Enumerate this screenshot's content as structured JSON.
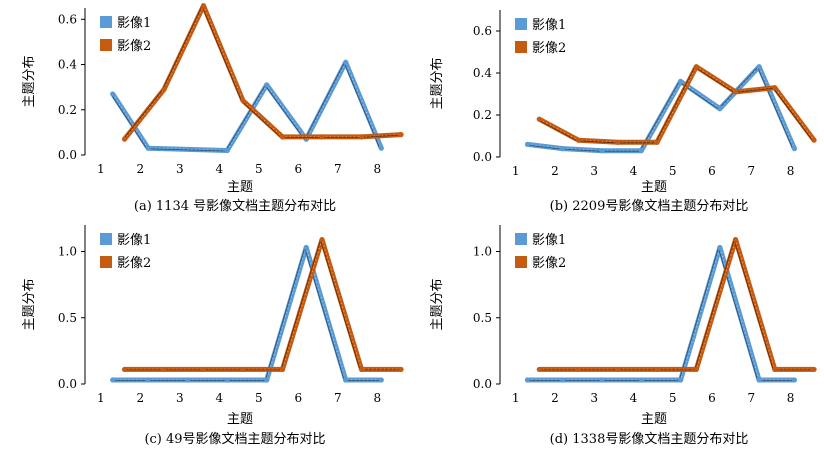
{
  "colors": {
    "影像1": "#5b9bd5",
    "影像2": "#c55a11"
  },
  "chart_data": [
    {
      "type": "line",
      "panel": "a",
      "caption": "(a) 1134 号影像文档主题分布对比",
      "xlabel": "主题",
      "ylabel": "主题分布",
      "x_ticks": [
        1,
        2,
        3,
        4,
        5,
        6,
        7,
        8
      ],
      "y_ticks": [
        "0.0",
        "0.2",
        "0.4",
        "0.6"
      ],
      "ylim": [
        0,
        0.65
      ],
      "xlim": [
        0.6,
        8.7
      ],
      "legend_placement": "top-left",
      "series": [
        {
          "name": "影像1",
          "x": [
            1.3,
            2.2,
            4.2,
            5.2,
            6.2,
            7.2,
            8.1
          ],
          "values": [
            0.27,
            0.03,
            0.02,
            0.31,
            0.07,
            0.41,
            0.03
          ]
        },
        {
          "name": "影像2",
          "x": [
            1.6,
            2.6,
            3.6,
            4.6,
            5.6,
            6.6,
            7.6,
            8.6
          ],
          "values": [
            0.07,
            0.29,
            0.66,
            0.24,
            0.08,
            0.08,
            0.08,
            0.09
          ]
        }
      ]
    },
    {
      "type": "line",
      "panel": "b",
      "caption": "(b) 2209号影像文档主题分布对比",
      "xlabel": "主题",
      "ylabel": "主题分布",
      "x_ticks": [
        1,
        2,
        3,
        4,
        5,
        6,
        7,
        8
      ],
      "y_ticks": [
        "0.0",
        "0.2",
        "0.4",
        "0.6"
      ],
      "ylim": [
        0,
        0.7
      ],
      "xlim": [
        0.6,
        8.7
      ],
      "legend_placement": "top-left",
      "series": [
        {
          "name": "影像1",
          "x": [
            1.3,
            2.2,
            3.2,
            4.2,
            5.2,
            6.2,
            7.2,
            8.1
          ],
          "values": [
            0.06,
            0.04,
            0.03,
            0.03,
            0.36,
            0.23,
            0.43,
            0.04
          ]
        },
        {
          "name": "影像2",
          "x": [
            1.6,
            2.6,
            3.6,
            4.6,
            5.6,
            6.6,
            7.6,
            8.6
          ],
          "values": [
            0.18,
            0.08,
            0.07,
            0.07,
            0.43,
            0.31,
            0.33,
            0.08
          ]
        }
      ]
    },
    {
      "type": "line",
      "panel": "c",
      "caption": "(c) 49号影像文档主题分布对比",
      "xlabel": "主题",
      "ylabel": "主题分布",
      "x_ticks": [
        1,
        2,
        3,
        4,
        5,
        6,
        7,
        8
      ],
      "y_ticks": [
        "0.0",
        "0.5",
        "1.0"
      ],
      "ylim": [
        0,
        1.2
      ],
      "xlim": [
        0.6,
        8.7
      ],
      "legend_placement": "top-left",
      "series": [
        {
          "name": "影像1",
          "x": [
            1.3,
            2.2,
            3.2,
            4.2,
            5.2,
            6.2,
            7.2,
            8.1
          ],
          "values": [
            0.03,
            0.03,
            0.03,
            0.03,
            0.03,
            1.03,
            0.03,
            0.03
          ]
        },
        {
          "name": "影像2",
          "x": [
            1.6,
            2.6,
            3.6,
            4.6,
            5.6,
            6.6,
            7.6,
            8.6
          ],
          "values": [
            0.11,
            0.11,
            0.11,
            0.11,
            0.11,
            1.09,
            0.11,
            0.11
          ]
        }
      ]
    },
    {
      "type": "line",
      "panel": "d",
      "caption": "(d) 1338号影像文档主题分布对比",
      "xlabel": "主题",
      "ylabel": "主题分布",
      "x_ticks": [
        1,
        2,
        3,
        4,
        5,
        6,
        7,
        8
      ],
      "y_ticks": [
        "0.0",
        "0.5",
        "1.0"
      ],
      "ylim": [
        0,
        1.2
      ],
      "xlim": [
        0.6,
        8.7
      ],
      "legend_placement": "top-left",
      "series": [
        {
          "name": "影像1",
          "x": [
            1.3,
            2.2,
            3.2,
            4.2,
            5.2,
            6.2,
            7.2,
            8.1
          ],
          "values": [
            0.03,
            0.03,
            0.03,
            0.03,
            0.03,
            1.03,
            0.03,
            0.03
          ]
        },
        {
          "name": "影像2",
          "x": [
            1.6,
            2.6,
            3.6,
            4.6,
            5.6,
            6.6,
            7.6,
            8.6
          ],
          "values": [
            0.11,
            0.11,
            0.11,
            0.11,
            0.11,
            1.09,
            0.11,
            0.11
          ]
        }
      ]
    }
  ]
}
